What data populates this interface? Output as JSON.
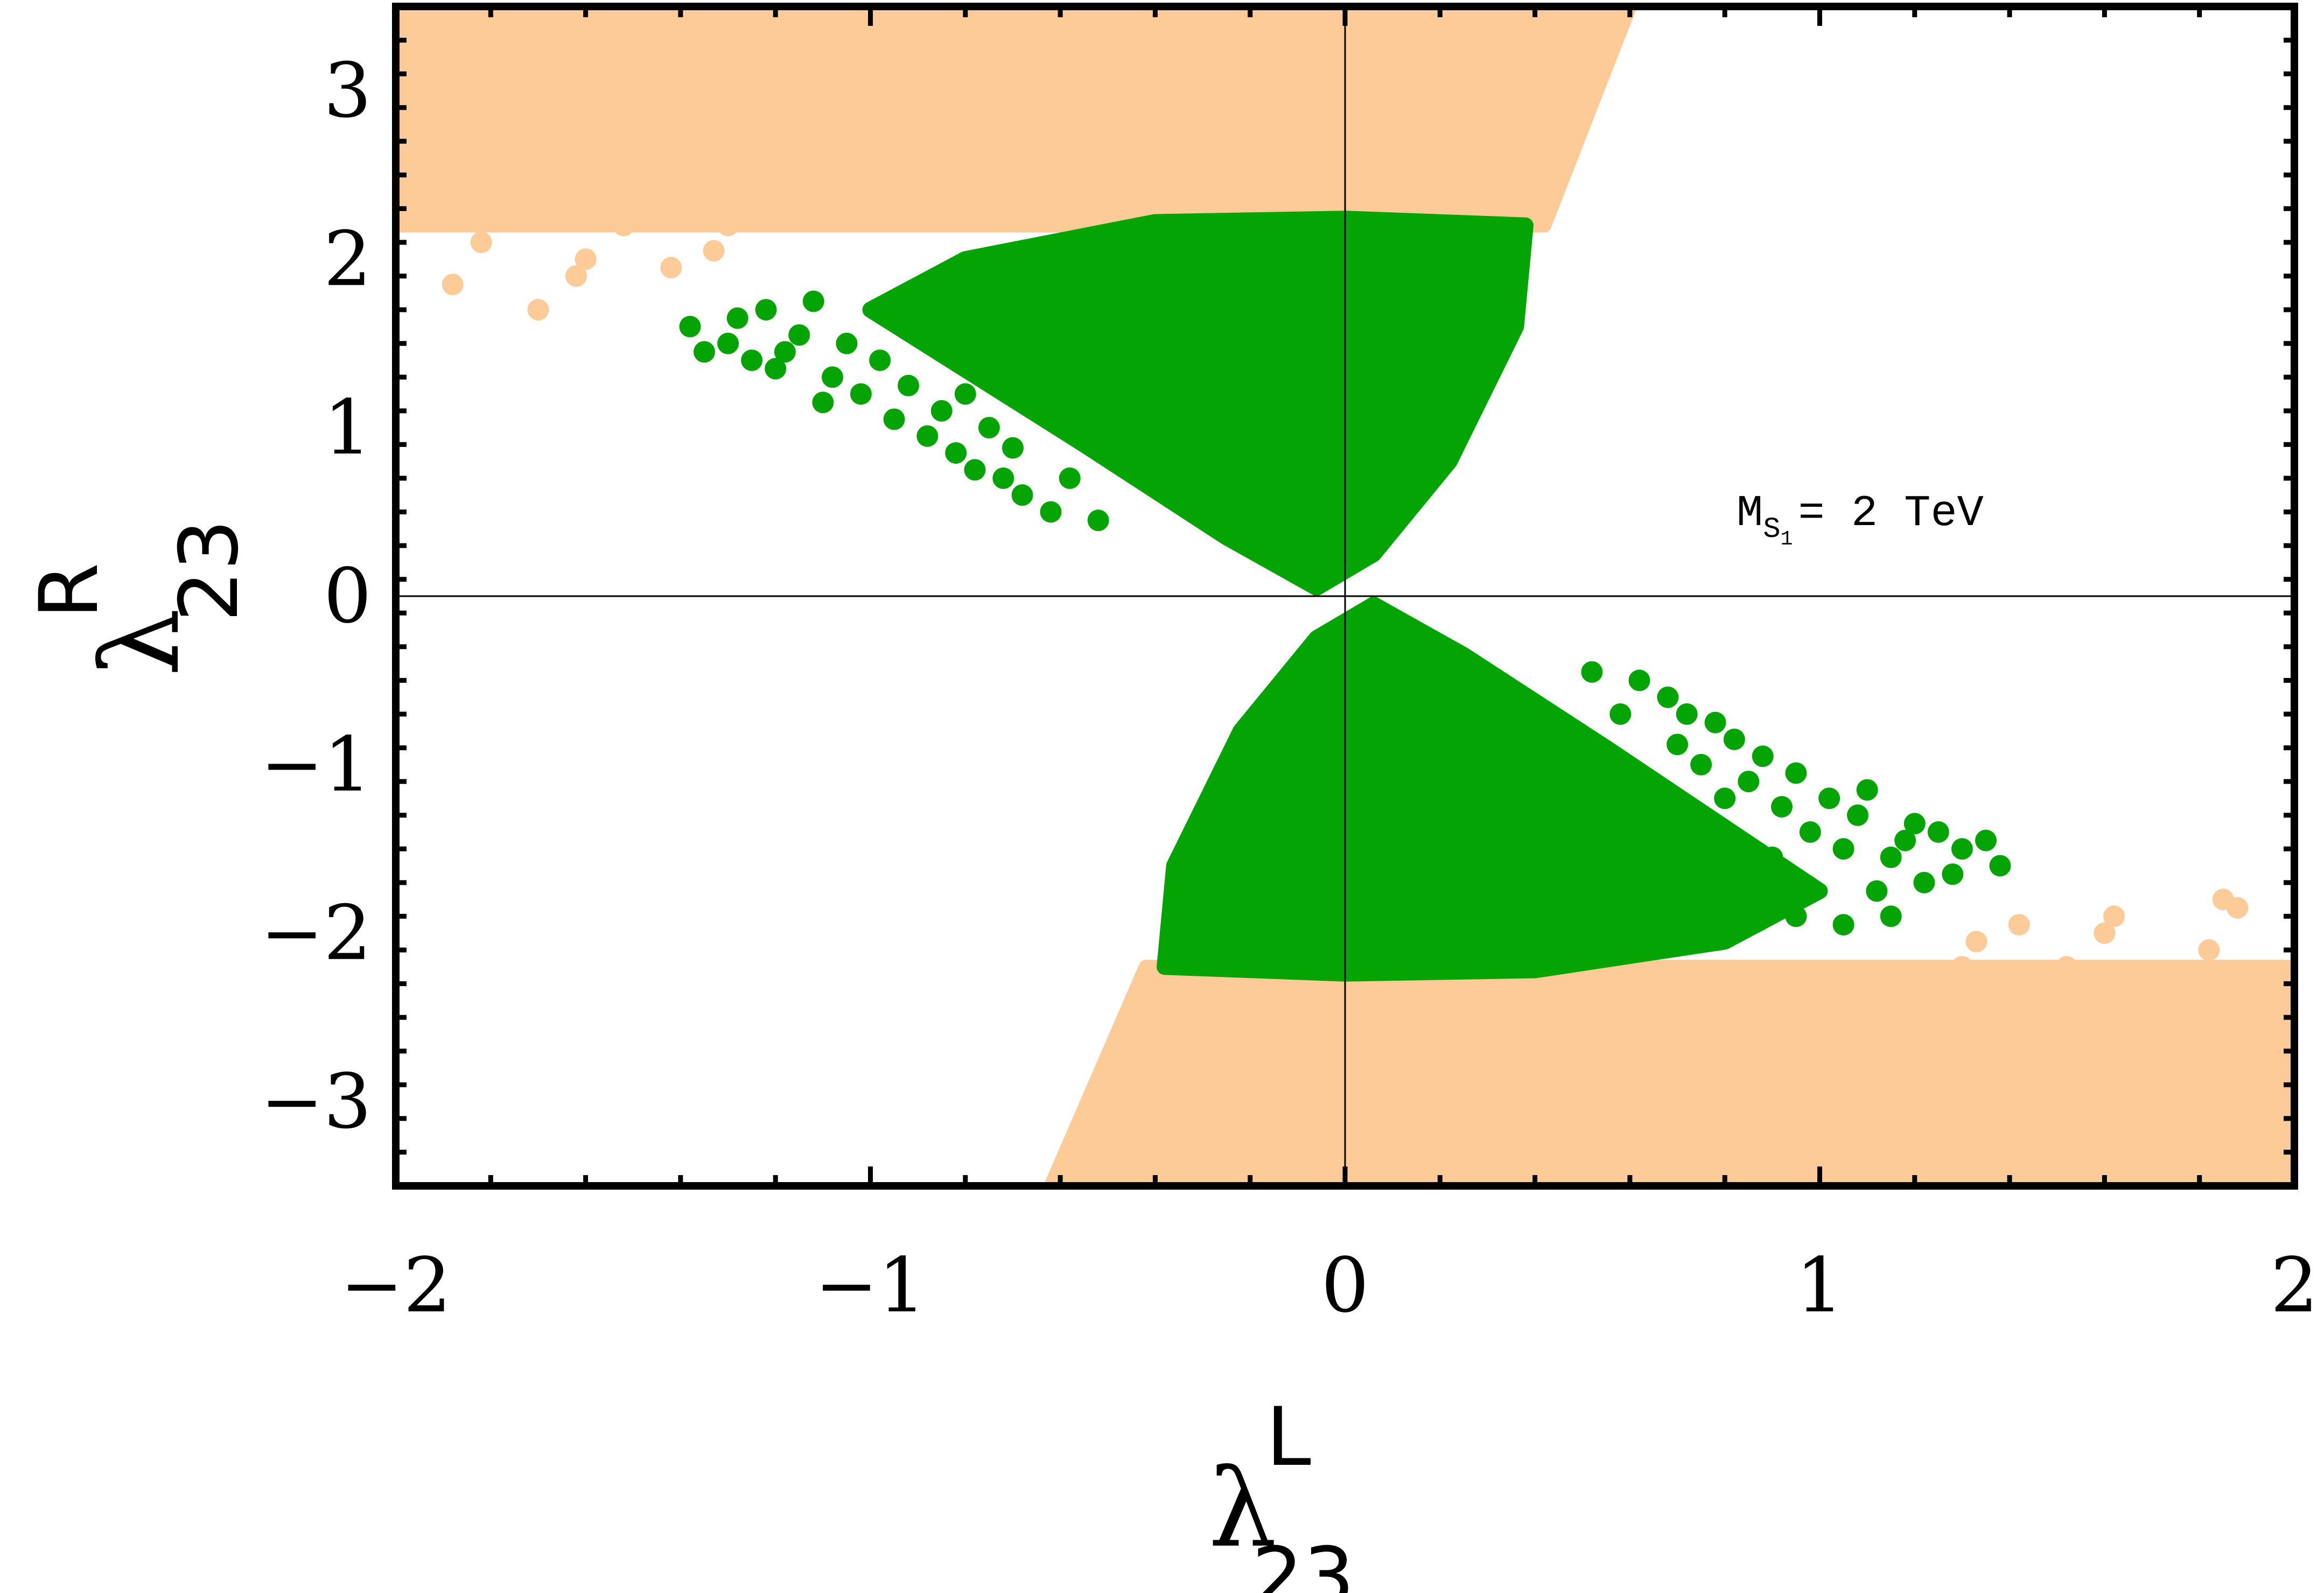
{
  "chart_data": {
    "type": "scatter",
    "xlabel": {
      "symbol": "λ",
      "superscript": "L",
      "subscript": "23"
    },
    "ylabel": {
      "symbol": "λ",
      "superscript": "R",
      "subscript": "23"
    },
    "xlim": [
      -2,
      2
    ],
    "ylim": [
      -3.5,
      3.5
    ],
    "x_ticks": [
      -2,
      -1,
      0,
      1,
      2
    ],
    "x_tick_labels": [
      "−2",
      "−1",
      "0",
      "1",
      "2"
    ],
    "y_ticks": [
      -3,
      -2,
      -1,
      0,
      1,
      2,
      3
    ],
    "y_tick_labels": [
      "−3",
      "−2",
      "−1",
      "0",
      "1",
      "2",
      "3"
    ],
    "grid": false,
    "zero_lines": true,
    "annotation": {
      "main": "M",
      "sub": "S",
      "subsub": "1",
      "rest": "= 2 TeV"
    },
    "series": [
      {
        "color": "#fccb98",
        "region": "outer band |λR| between 2.2 and 3.5, plus scattered tails",
        "boundary_upper_band": [
          [
            -2.0,
            3.5
          ],
          [
            -1.2,
            3.5
          ],
          [
            0.2,
            3.5
          ],
          [
            0.6,
            3.5
          ],
          [
            0.42,
            2.2
          ],
          [
            -0.8,
            2.2
          ],
          [
            -2.0,
            2.2
          ]
        ],
        "boundary_lower_band": [
          [
            2.0,
            -3.5
          ],
          [
            1.2,
            -3.5
          ],
          [
            -0.2,
            -3.5
          ],
          [
            -0.62,
            -3.5
          ],
          [
            -0.42,
            -2.2
          ],
          [
            0.8,
            -2.2
          ],
          [
            2.0,
            -2.2
          ]
        ],
        "scattered_points_upper": [
          [
            -1.98,
            3.4
          ],
          [
            -1.92,
            2.9
          ],
          [
            -1.85,
            3.1
          ],
          [
            -1.8,
            2.6
          ],
          [
            -1.75,
            3.2
          ],
          [
            -1.7,
            2.4
          ],
          [
            -1.65,
            2.95
          ],
          [
            -1.9,
            2.5
          ],
          [
            -1.82,
            2.1
          ],
          [
            -1.7,
            1.7
          ],
          [
            -1.6,
            2.0
          ],
          [
            -1.55,
            2.7
          ],
          [
            -1.5,
            3.0
          ],
          [
            -1.45,
            2.35
          ],
          [
            -1.4,
            2.6
          ],
          [
            -1.35,
            3.3
          ],
          [
            -1.3,
            2.2
          ],
          [
            -1.25,
            2.9
          ],
          [
            -1.6,
            3.4
          ],
          [
            -1.88,
            1.85
          ],
          [
            -1.78,
            2.75
          ],
          [
            -1.62,
            1.9
          ],
          [
            -1.52,
            2.2
          ],
          [
            -1.42,
            1.95
          ],
          [
            -1.5,
            3.35
          ],
          [
            -1.95,
            2.7
          ],
          [
            -1.72,
            3.35
          ],
          [
            -1.58,
            2.45
          ],
          [
            -1.33,
            2.05
          ],
          [
            -1.2,
            2.4
          ]
        ],
        "scattered_points_lower": [
          [
            1.98,
            -3.4
          ],
          [
            1.92,
            -2.9
          ],
          [
            1.85,
            -3.1
          ],
          [
            1.8,
            -2.6
          ],
          [
            1.75,
            -3.2
          ],
          [
            1.7,
            -2.4
          ],
          [
            1.65,
            -2.95
          ],
          [
            1.9,
            -2.5
          ],
          [
            1.82,
            -2.1
          ],
          [
            1.6,
            -2.0
          ],
          [
            1.55,
            -2.7
          ],
          [
            1.5,
            -3.0
          ],
          [
            1.45,
            -2.35
          ],
          [
            1.4,
            -2.6
          ],
          [
            1.35,
            -3.3
          ],
          [
            1.3,
            -2.2
          ],
          [
            1.25,
            -2.9
          ],
          [
            1.6,
            -3.4
          ],
          [
            1.88,
            -1.85
          ],
          [
            1.78,
            -2.75
          ],
          [
            1.62,
            -1.9
          ],
          [
            1.52,
            -2.2
          ],
          [
            1.42,
            -1.95
          ],
          [
            1.5,
            -3.35
          ],
          [
            1.95,
            -2.7
          ],
          [
            1.72,
            -3.35
          ],
          [
            1.58,
            -2.45
          ],
          [
            1.33,
            -2.05
          ],
          [
            1.2,
            -2.4
          ],
          [
            1.85,
            -1.8
          ]
        ]
      },
      {
        "color": "#05a405",
        "region": "inner allowed lobes",
        "boundary_upper_lobe": [
          [
            -0.06,
            0.05
          ],
          [
            0.06,
            0.25
          ],
          [
            0.22,
            0.8
          ],
          [
            0.36,
            1.6
          ],
          [
            0.38,
            2.2
          ],
          [
            0.0,
            2.24
          ],
          [
            -0.4,
            2.22
          ],
          [
            -0.8,
            2.0
          ],
          [
            -1.0,
            1.7
          ],
          [
            -0.55,
            0.9
          ],
          [
            -0.25,
            0.35
          ]
        ],
        "boundary_lower_lobe": [
          [
            0.06,
            -0.05
          ],
          [
            -0.06,
            -0.25
          ],
          [
            -0.22,
            -0.8
          ],
          [
            -0.36,
            -1.6
          ],
          [
            -0.38,
            -2.2
          ],
          [
            0.0,
            -2.24
          ],
          [
            0.4,
            -2.22
          ],
          [
            0.8,
            -2.05
          ],
          [
            1.0,
            -1.75
          ],
          [
            0.55,
            -0.9
          ],
          [
            0.25,
            -0.35
          ]
        ],
        "scattered_points_upper": [
          [
            -1.38,
            1.6
          ],
          [
            -1.35,
            1.45
          ],
          [
            -1.3,
            1.5
          ],
          [
            -1.28,
            1.65
          ],
          [
            -1.22,
            1.7
          ],
          [
            -1.2,
            1.35
          ],
          [
            -1.15,
            1.55
          ],
          [
            -1.12,
            1.75
          ],
          [
            -1.08,
            1.3
          ],
          [
            -1.05,
            1.5
          ],
          [
            -1.02,
            1.2
          ],
          [
            -0.98,
            1.4
          ],
          [
            -0.95,
            1.05
          ],
          [
            -0.92,
            1.25
          ],
          [
            -0.88,
            0.95
          ],
          [
            -0.85,
            1.1
          ],
          [
            -0.82,
            0.85
          ],
          [
            -0.78,
            0.75
          ],
          [
            -0.75,
            1.0
          ],
          [
            -0.72,
            0.7
          ],
          [
            -0.68,
            0.6
          ],
          [
            -0.62,
            0.5
          ],
          [
            -0.58,
            0.7
          ],
          [
            -0.52,
            0.45
          ],
          [
            -1.25,
            1.4
          ],
          [
            -1.18,
            1.45
          ],
          [
            -0.9,
            1.55
          ],
          [
            -0.7,
            0.88
          ],
          [
            -1.1,
            1.15
          ],
          [
            -0.8,
            1.2
          ]
        ],
        "scattered_points_lower": [
          [
            1.38,
            -1.6
          ],
          [
            1.35,
            -1.45
          ],
          [
            1.3,
            -1.5
          ],
          [
            1.28,
            -1.65
          ],
          [
            1.22,
            -1.7
          ],
          [
            1.2,
            -1.35
          ],
          [
            1.15,
            -1.55
          ],
          [
            1.12,
            -1.75
          ],
          [
            1.08,
            -1.3
          ],
          [
            1.05,
            -1.5
          ],
          [
            1.02,
            -1.2
          ],
          [
            0.98,
            -1.4
          ],
          [
            0.95,
            -1.05
          ],
          [
            0.92,
            -1.25
          ],
          [
            0.88,
            -0.95
          ],
          [
            0.85,
            -1.1
          ],
          [
            0.82,
            -0.85
          ],
          [
            0.78,
            -0.75
          ],
          [
            0.75,
            -1.0
          ],
          [
            0.72,
            -0.7
          ],
          [
            0.68,
            -0.6
          ],
          [
            0.62,
            -0.5
          ],
          [
            0.58,
            -0.7
          ],
          [
            0.52,
            -0.45
          ],
          [
            1.25,
            -1.4
          ],
          [
            1.18,
            -1.45
          ],
          [
            0.9,
            -1.55
          ],
          [
            0.7,
            -0.88
          ],
          [
            1.1,
            -1.15
          ],
          [
            0.8,
            -1.2
          ],
          [
            1.15,
            -1.9
          ],
          [
            1.05,
            -1.95
          ],
          [
            0.95,
            -1.9
          ]
        ]
      }
    ]
  }
}
